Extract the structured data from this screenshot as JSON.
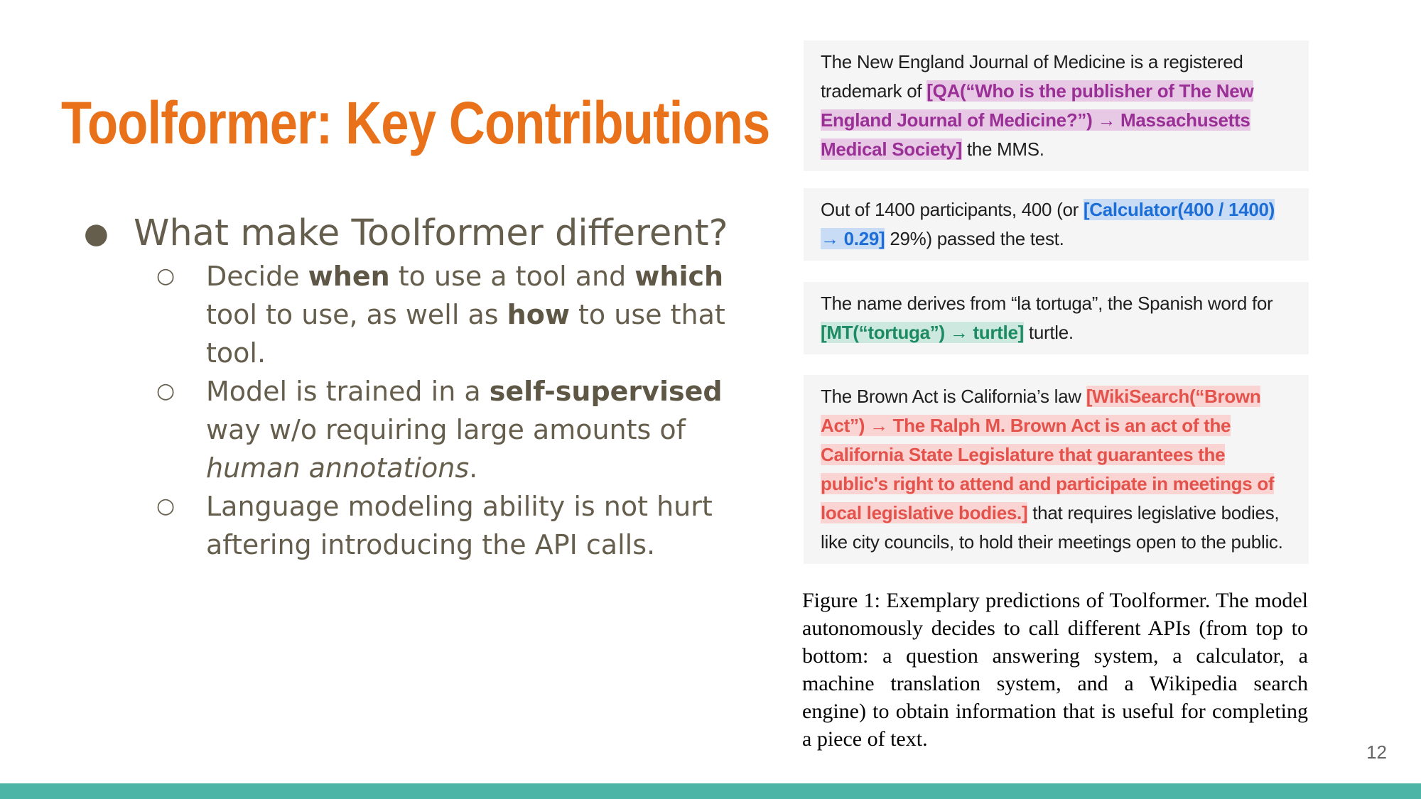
{
  "slide": {
    "title": "Toolformer: Key Contributions",
    "page_number": "12",
    "bullet": {
      "text": "What make Toolformer different?",
      "subs": [
        {
          "p1": "Decide ",
          "b1": "when",
          "p2": " to use a tool and ",
          "b2": "which",
          "p3": " tool to use, as well as ",
          "b3": "how",
          "p4": " to use that tool."
        },
        {
          "p1": "Model is trained in a ",
          "b1": "self-supervised",
          "p2": " way w/o requiring large amounts of ",
          "i1": "human annotations",
          "p3": "."
        },
        {
          "p1": "Language modeling ability is not hurt aftering introducing the API calls."
        }
      ]
    }
  },
  "figure": {
    "examples": [
      {
        "pre": "The New England Journal of Medicine is a registered trademark of ",
        "call": "[QA(“Who is the publisher of The New England Journal of Medicine?”) → Massachusetts Medical Society]",
        "post": " the MMS."
      },
      {
        "pre": "Out of 1400 participants, 400 (or ",
        "call": "[Calculator(400 / 1400) → 0.29]",
        "post": " 29%) passed the test."
      },
      {
        "pre": "The name derives from “la tortuga”, the Spanish word for ",
        "call": "[MT(“tortuga”) → turtle]",
        "post": " turtle."
      },
      {
        "pre": "The Brown Act is California’s law ",
        "call": "[WikiSearch(“Brown Act”) → The Ralph M. Brown Act is an act of the California State Legislature that guarantees the public's right to attend and participate in meetings of local legislative bodies.]",
        "post": " that requires legislative bodies, like city councils, to hold their meetings open to the public."
      }
    ],
    "caption": "Figure 1: Exemplary predictions of Toolformer. The model autonomously decides to call different APIs (from top to bottom: a question answering system, a calculator, a machine translation system, and a Wikipedia search engine) to obtain information that is useful for completing a piece of text."
  }
}
